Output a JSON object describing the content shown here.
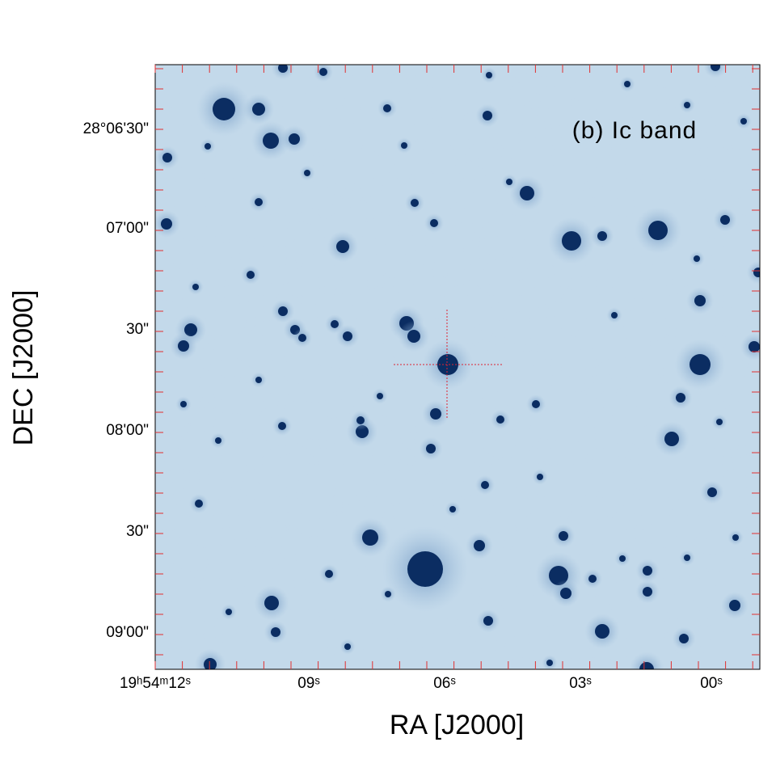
{
  "figure": {
    "annotation": "(b) Ic band",
    "x_axis": {
      "label": "RA [J2000]",
      "ticks": [
        "19ʰ54ᵐ12ˢ",
        "09ˢ",
        "06ˢ",
        "03ˢ",
        "00ˢ"
      ]
    },
    "y_axis": {
      "label": "DEC [J2000]",
      "ticks": [
        "28°06'30\"",
        "07'00\"",
        "30\"",
        "08'00\"",
        "30\"",
        "09'00\""
      ]
    }
  }
}
